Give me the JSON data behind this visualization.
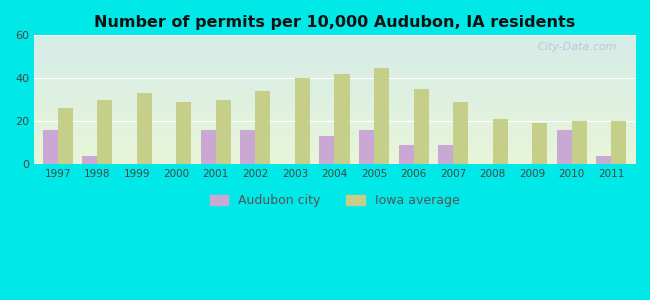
{
  "title": "Number of permits per 10,000 Audubon, IA residents",
  "years": [
    1997,
    1998,
    1999,
    2000,
    2001,
    2002,
    2003,
    2004,
    2005,
    2006,
    2007,
    2008,
    2009,
    2010,
    2011
  ],
  "audubon_city": [
    16,
    4,
    0,
    0,
    16,
    16,
    0,
    13,
    16,
    9,
    9,
    0,
    0,
    16,
    4
  ],
  "iowa_average": [
    26,
    30,
    33,
    29,
    30,
    34,
    40,
    42,
    45,
    35,
    29,
    21,
    19,
    20,
    20
  ],
  "city_color": "#c9a8d4",
  "iowa_color": "#c5cf8a",
  "ylim": [
    0,
    60
  ],
  "yticks": [
    0,
    20,
    40,
    60
  ],
  "bar_width": 0.38,
  "legend_city": "Audubon city",
  "legend_iowa": "Iowa average",
  "figure_bg": "#00e8e8",
  "plot_bg_color": "#e0f0e8",
  "gradient_top": "#c8eeee",
  "gradient_bottom": "#d8ecc8",
  "watermark": "City-Data.com"
}
